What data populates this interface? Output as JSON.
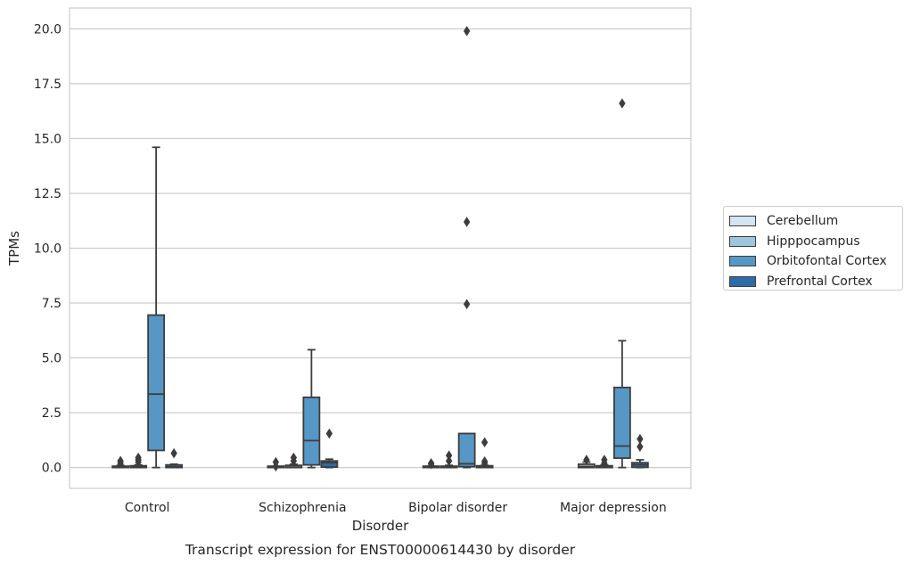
{
  "chart_data": {
    "type": "box",
    "title": "Transcript expression for ENST00000614430 by disorder",
    "xlabel": "Disorder",
    "ylabel": "TPMs",
    "ylim": [
      -0.95,
      20.95
    ],
    "yticks": [
      "0.0",
      "2.5",
      "5.0",
      "7.5",
      "10.0",
      "12.5",
      "15.0",
      "17.5",
      "20.0"
    ],
    "ytick_values": [
      0,
      2.5,
      5,
      7.5,
      10,
      12.5,
      15,
      17.5,
      20
    ],
    "grid": "horizontal",
    "legend_position": "right",
    "categories": [
      "Control",
      "Schizophrenia",
      "Bipolar disorder",
      "Major depression"
    ],
    "series": [
      {
        "name": "Cerebellum",
        "color": "#d4e4f1",
        "boxes": [
          {
            "q1": 0,
            "median": 0.02,
            "q3": 0.05,
            "whisker_low": 0,
            "whisker_high": 0.1,
            "outliers": [
              0.2,
              0.3
            ]
          },
          {
            "q1": 0,
            "median": 0,
            "q3": 0.02,
            "whisker_low": 0,
            "whisker_high": 0.03,
            "outliers": [
              0.05,
              0.25
            ]
          },
          {
            "q1": 0,
            "median": 0.01,
            "q3": 0.03,
            "whisker_low": 0,
            "whisker_high": 0.06,
            "outliers": [
              0.15,
              0.2
            ]
          },
          {
            "q1": 0,
            "median": 0.05,
            "q3": 0.15,
            "whisker_low": 0,
            "whisker_high": 0.25,
            "outliers": [
              0.35
            ]
          }
        ]
      },
      {
        "name": "Hipppocampus",
        "color": "#9fc6df",
        "boxes": [
          {
            "q1": 0,
            "median": 0.03,
            "q3": 0.08,
            "whisker_low": 0,
            "whisker_high": 0.12,
            "outliers": [
              0.25,
              0.35,
              0.45
            ]
          },
          {
            "q1": 0,
            "median": 0.02,
            "q3": 0.1,
            "whisker_low": 0,
            "whisker_high": 0.15,
            "outliers": [
              0.3,
              0.45
            ]
          },
          {
            "q1": 0,
            "median": 0.02,
            "q3": 0.06,
            "whisker_low": 0,
            "whisker_high": 0.1,
            "outliers": [
              0.3,
              0.55
            ]
          },
          {
            "q1": 0,
            "median": 0.04,
            "q3": 0.08,
            "whisker_low": 0,
            "whisker_high": 0.12,
            "outliers": [
              0.2,
              0.35
            ]
          }
        ]
      },
      {
        "name": "Orbitofontal Cortex",
        "color": "#5697c6",
        "boxes": [
          {
            "q1": 0.78,
            "median": 3.35,
            "q3": 6.95,
            "whisker_low": 0,
            "whisker_high": 14.6,
            "outliers": []
          },
          {
            "q1": 0.12,
            "median": 1.23,
            "q3": 3.2,
            "whisker_low": 0,
            "whisker_high": 5.37,
            "outliers": []
          },
          {
            "q1": 0.04,
            "median": 0.17,
            "q3": 1.55,
            "whisker_low": 0,
            "whisker_high": 1.55,
            "outliers": [
              7.45,
              11.2,
              19.9
            ]
          },
          {
            "q1": 0.43,
            "median": 0.98,
            "q3": 3.65,
            "whisker_low": 0,
            "whisker_high": 5.78,
            "outliers": [
              16.6
            ]
          }
        ]
      },
      {
        "name": "Prefrontal Cortex",
        "color": "#2c6ca8",
        "boxes": [
          {
            "q1": 0,
            "median": 0.03,
            "q3": 0.12,
            "whisker_low": 0,
            "whisker_high": 0.15,
            "outliers": [
              0.65
            ]
          },
          {
            "q1": 0.02,
            "median": 0.22,
            "q3": 0.3,
            "whisker_low": 0,
            "whisker_high": 0.38,
            "outliers": [
              1.55
            ]
          },
          {
            "q1": 0,
            "median": 0.03,
            "q3": 0.08,
            "whisker_low": 0,
            "whisker_high": 0.1,
            "outliers": [
              0.2,
              0.28,
              1.15
            ]
          },
          {
            "q1": 0.01,
            "median": 0.12,
            "q3": 0.22,
            "whisker_low": 0,
            "whisker_high": 0.35,
            "outliers": [
              0.95,
              1.3
            ]
          }
        ]
      }
    ]
  }
}
